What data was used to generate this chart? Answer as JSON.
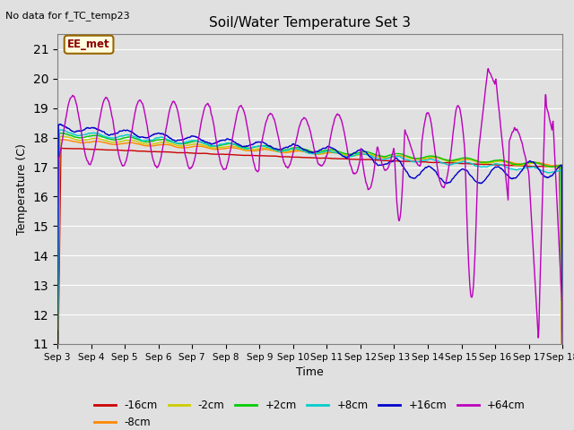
{
  "title": "Soil/Water Temperature Set 3",
  "xlabel": "Time",
  "ylabel": "Temperature (C)",
  "top_left_note": "No data for f_TC_temp23",
  "annotation_label": "EE_met",
  "ylim": [
    11.0,
    21.5
  ],
  "yticks": [
    11.0,
    12.0,
    13.0,
    14.0,
    15.0,
    16.0,
    17.0,
    18.0,
    19.0,
    20.0,
    21.0
  ],
  "x_tick_labels": [
    "Sep 3",
    "Sep 4",
    "Sep 5",
    "Sep 6",
    "Sep 7",
    "Sep 8",
    "Sep 9",
    "Sep 10",
    "Sep 11",
    "Sep 12",
    "Sep 13",
    "Sep 14",
    "Sep 15",
    "Sep 16",
    "Sep 17",
    "Sep 18"
  ],
  "bg_color": "#e0e0e0",
  "plot_bg_color": "#e0e0e0",
  "series_colors": {
    "-16cm": "#cc0000",
    "-8cm": "#ff8800",
    "-2cm": "#cccc00",
    "+2cm": "#00cc00",
    "+8cm": "#00cccc",
    "+16cm": "#0000cc",
    "+64cm": "#bb00bb"
  },
  "legend_entries": [
    "-16cm",
    "-8cm",
    "-2cm",
    "+2cm",
    "+8cm",
    "+16cm",
    "+64cm"
  ]
}
